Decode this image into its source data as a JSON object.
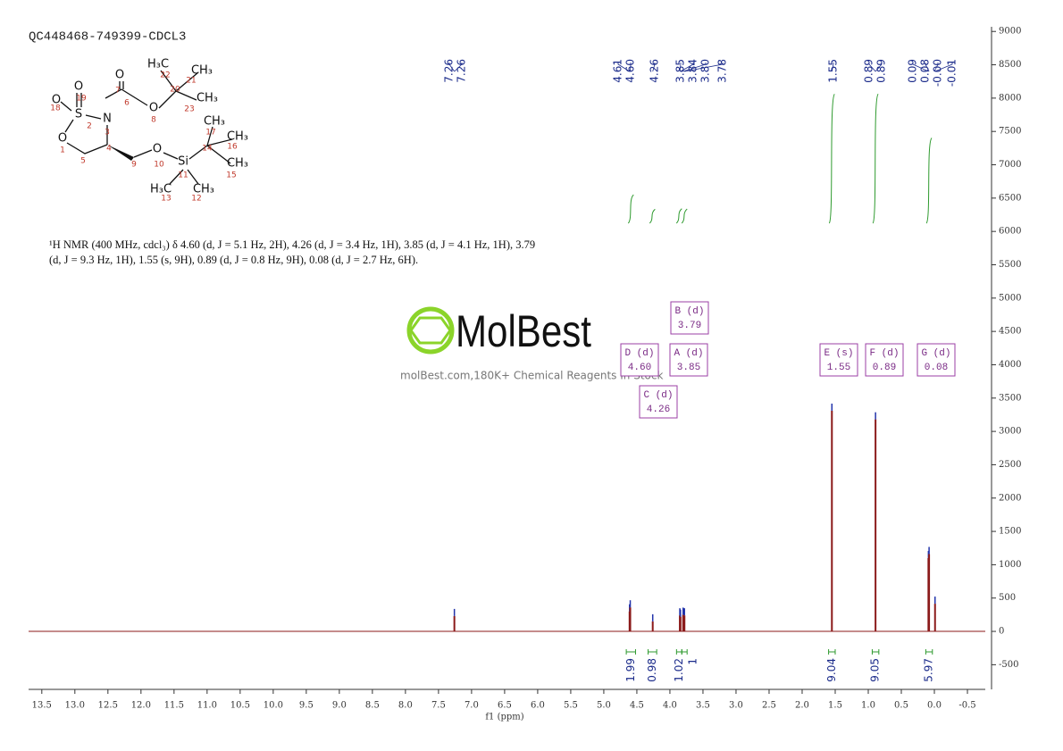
{
  "chart_data": {
    "type": "spectrum",
    "title": "QC448468-749399-CDCL3",
    "xlabel": "f1 (ppm)",
    "xlim": [
      13.7,
      -0.77
    ],
    "ylim": [
      -870,
      9070
    ],
    "xticks": [
      13.5,
      {
        "value": 13,
        "label": "13.0"
      },
      12.5,
      {
        "value": 12,
        "label": "12.0"
      },
      11.5,
      {
        "value": 11,
        "label": "11.0"
      },
      10.5,
      {
        "value": 10,
        "label": "10.0"
      },
      9.5,
      {
        "value": 9,
        "label": "9.0"
      },
      8.5,
      {
        "value": 8,
        "label": "8.0"
      },
      7.5,
      {
        "value": 7,
        "label": "7.0"
      },
      6.5,
      {
        "value": 6,
        "label": "6.0"
      },
      5.5,
      {
        "value": 5,
        "label": "5.0"
      },
      4.5,
      {
        "value": 4,
        "label": "4.0"
      },
      3.5,
      {
        "value": 3,
        "label": "3.0"
      },
      2.5,
      {
        "value": 2,
        "label": "2.0"
      },
      1.5,
      {
        "value": 1,
        "label": "1.0"
      },
      0.5,
      {
        "value": 0,
        "label": "0.0"
      },
      -0.5
    ],
    "yticks": [
      9000,
      8500,
      8000,
      7500,
      7000,
      6500,
      6000,
      5500,
      5000,
      4500,
      4000,
      3500,
      3000,
      2500,
      2000,
      1500,
      1000,
      500,
      0,
      -500
    ],
    "line_color": "#8b1a1a",
    "peaks": {
      "x": [
        7.26,
        4.61,
        4.6,
        4.26,
        3.85,
        3.84,
        3.8,
        3.78,
        1.55,
        0.89,
        0.09,
        0.08,
        -0.01
      ],
      "values": [
        230,
        300,
        360,
        150,
        240,
        220,
        250,
        240,
        3310,
        3180,
        1100,
        1160,
        415
      ]
    },
    "peak_labels": [
      {
        "value": 7.26,
        "label": "7.26"
      },
      {
        "value": 7.26,
        "label": "7.26"
      },
      {
        "value": 4.61,
        "label": "4.61"
      },
      {
        "value": 4.6,
        "label": "4.60"
      },
      {
        "value": 4.26,
        "label": "4.26"
      },
      {
        "value": 3.85,
        "label": "3.85"
      },
      {
        "value": 3.84,
        "label": "3.84"
      },
      {
        "value": 3.8,
        "label": "3.80"
      },
      {
        "value": 3.78,
        "label": "3.78"
      },
      {
        "value": 1.55,
        "label": "1.55"
      },
      {
        "value": 0.89,
        "label": "0.89"
      },
      {
        "value": 0.89,
        "label": "0.89"
      },
      {
        "value": 0.09,
        "label": "0.09"
      },
      {
        "value": 0.08,
        "label": "0.08"
      },
      {
        "value": 0.0,
        "label": "-0.00"
      },
      {
        "value": -0.01,
        "label": "-0.01"
      }
    ],
    "integrals": [
      {
        "from": 4.66,
        "to": 4.52,
        "value": 1.99
      },
      {
        "from": 4.33,
        "to": 4.2,
        "value": 0.98
      },
      {
        "from": 3.9,
        "to": 3.82,
        "value": 1.02
      },
      {
        "from": 3.82,
        "to": 3.74,
        "value": 1.0
      },
      {
        "from": 1.6,
        "to": 1.5,
        "value": 9.04
      },
      {
        "from": 0.94,
        "to": 0.84,
        "value": 9.05
      },
      {
        "from": 0.13,
        "to": 0.03,
        "value": 5.97
      }
    ],
    "integral_color": "#2e9a2e",
    "multiplets": [
      {
        "name": "D (d)",
        "shift": "4.60"
      },
      {
        "name": "B (d)",
        "shift": "3.79"
      },
      {
        "name": "A (d)",
        "shift": "3.85"
      },
      {
        "name": "C (d)",
        "shift": "4.26"
      },
      {
        "name": "E (s)",
        "shift": "1.55"
      },
      {
        "name": "F (d)",
        "shift": "0.89"
      },
      {
        "name": "G (d)",
        "shift": "0.08"
      }
    ],
    "description": "¹H NMR (400 MHz, cdcl₃) δ 4.60 (d, J = 5.1 Hz, 2H), 4.26 (d, J = 3.4 Hz, 1H), 3.85 (d, J = 4.1 Hz, 1H), 3.79 (d, J = 9.3 Hz, 1H), 1.55 (s, 9H), 0.89 (d, J = 0.8 Hz, 9H), 0.08 (d, J = 2.7 Hz, 6H).",
    "watermark": {
      "brand": "MolBest",
      "tagline": "molBest.com,180K+ Chemical Reagents In Stock"
    },
    "structure": {
      "atoms": [
        "O",
        "O",
        "O",
        "S",
        "N",
        "O",
        "O",
        "H₃C",
        "CH₃",
        "CH₃",
        "O",
        "Si",
        "CH₃",
        "CH₃",
        "CH₃",
        "H₃C",
        "CH₃"
      ],
      "numbers": [
        "7",
        "19",
        "18",
        "6",
        "20",
        "22",
        "21",
        "23",
        "8",
        "2",
        "3",
        "1",
        "5",
        "4",
        "9",
        "10",
        "17",
        "14",
        "16",
        "15",
        "11",
        "13",
        "12"
      ]
    }
  }
}
